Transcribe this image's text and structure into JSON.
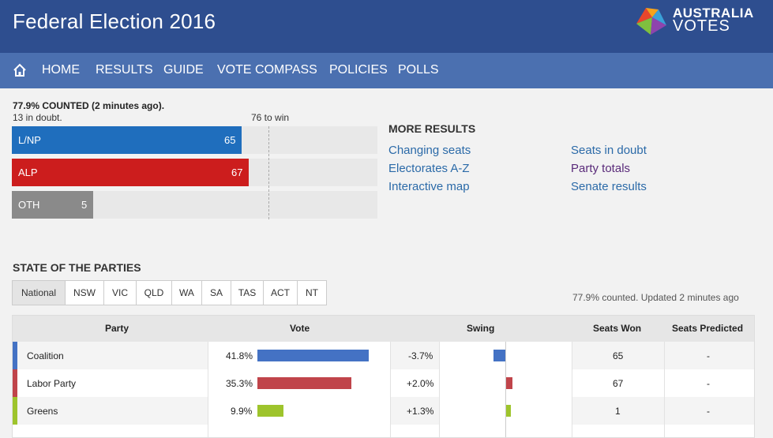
{
  "header": {
    "title": "Federal Election 2016",
    "logo_line1": "AUSTRALIA",
    "logo_line2": "VOTES"
  },
  "nav": {
    "items": [
      "HOME",
      "RESULTS",
      "GUIDE",
      "VOTE COMPASS",
      "POLICIES",
      "POLLS"
    ]
  },
  "summary": {
    "counted": "77.9% COUNTED (2 minutes ago).",
    "in_doubt": "13 in doubt.",
    "to_win": "76 to win",
    "bars": [
      {
        "label": "L/NP",
        "value": "65",
        "seats": 65,
        "color": "#1f6ebd"
      },
      {
        "label": "ALP",
        "value": "67",
        "seats": 67,
        "color": "#cc1d1d"
      },
      {
        "label": "OTH",
        "value": "5",
        "seats": 5,
        "color": "#8a8a8a"
      }
    ],
    "max_seats": 150
  },
  "more_results": {
    "title": "MORE RESULTS",
    "links": [
      "Changing seats",
      "Electorates A-Z",
      "Interactive map",
      "Seats in doubt",
      "Party totals",
      "Senate results"
    ]
  },
  "state_of_parties": {
    "title": "STATE OF THE PARTIES",
    "tabs": [
      "National",
      "NSW",
      "VIC",
      "QLD",
      "WA",
      "SA",
      "TAS",
      "ACT",
      "NT"
    ],
    "active_tab": "National",
    "updated": "77.9% counted. Updated 2 minutes ago",
    "columns": [
      "Party",
      "Vote",
      "Swing",
      "Seats Won",
      "Seats Predicted"
    ],
    "rows": [
      {
        "party": "Coalition",
        "vote": "41.8%",
        "vote_num": 41.8,
        "swing": "-3.7%",
        "swing_num": -3.7,
        "seats_won": "65",
        "seats_predicted": "-",
        "color": "#4472c4"
      },
      {
        "party": "Labor Party",
        "vote": "35.3%",
        "vote_num": 35.3,
        "swing": "+2.0%",
        "swing_num": 2.0,
        "seats_won": "67",
        "seats_predicted": "-",
        "color": "#c0444a"
      },
      {
        "party": "Greens",
        "vote": "9.9%",
        "vote_num": 9.9,
        "swing": "+1.3%",
        "swing_num": 1.3,
        "seats_won": "1",
        "seats_predicted": "-",
        "color": "#9ec42c"
      }
    ]
  }
}
